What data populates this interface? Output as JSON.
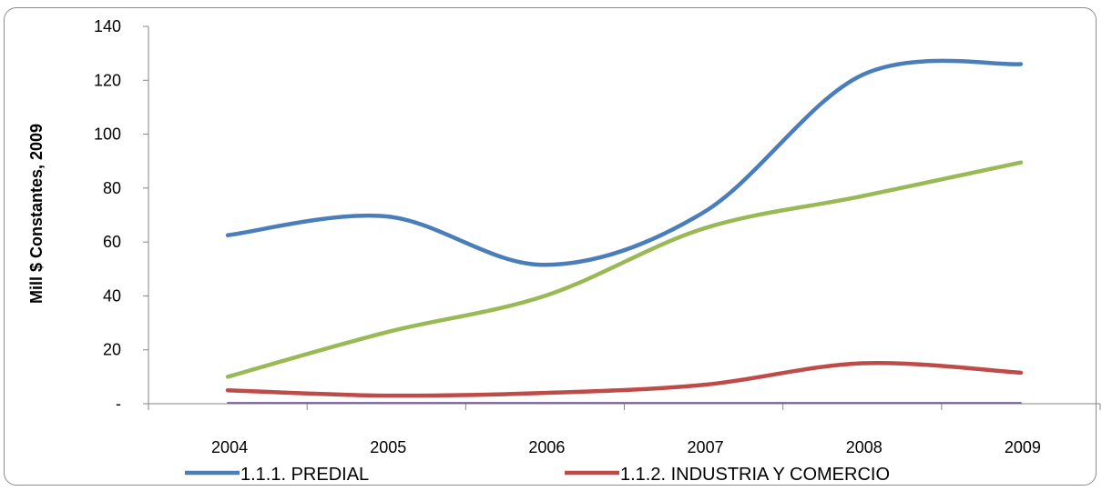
{
  "chart_data": {
    "type": "line",
    "ylabel": "Mill $ Constantes, 2009",
    "xlabel": "",
    "categories": [
      "2004",
      "2005",
      "2006",
      "2007",
      "2008",
      "2009"
    ],
    "ylim": [
      0,
      140
    ],
    "ytick_values": [
      0,
      20,
      40,
      60,
      80,
      100,
      120,
      140
    ],
    "ytick_labels": [
      "-",
      "20",
      "40",
      "60",
      "80",
      "100",
      "120",
      "140"
    ],
    "smooth": true,
    "series": [
      {
        "name": "1.1.1. PREDIAL",
        "color": "#4a7ebb",
        "values": [
          62.5,
          69.5,
          51.5,
          71,
          122,
          126
        ]
      },
      {
        "name": "1.1.2. INDUSTRIA Y COMERCIO",
        "color": "#be4b48",
        "values": [
          5,
          3,
          4,
          7,
          15,
          11.5
        ]
      },
      {
        "name": "",
        "color": "#98b954",
        "values": [
          10,
          26.5,
          40,
          65,
          77,
          89.5
        ]
      },
      {
        "name": "",
        "color": "#7d60a0",
        "values": [
          0.3,
          0.3,
          0.3,
          0.3,
          0.3,
          0.3
        ]
      }
    ],
    "legend": "bottom"
  }
}
